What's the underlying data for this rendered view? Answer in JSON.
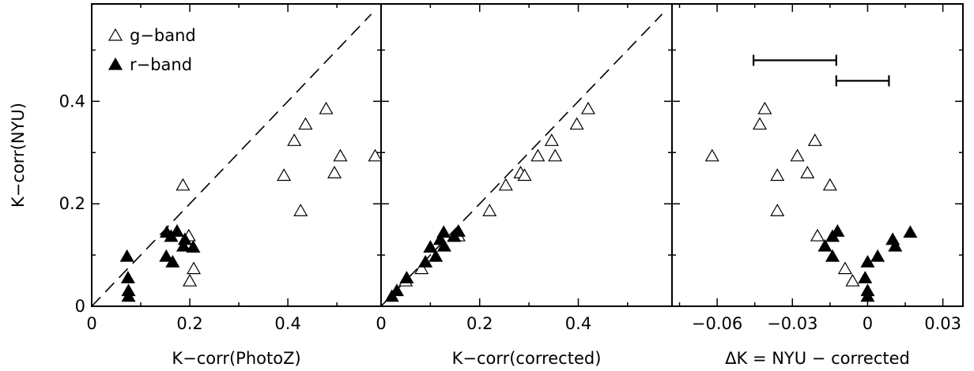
{
  "chart_data": [
    {
      "type": "scatter",
      "panel": "left",
      "xlabel": "K−corr(PhotoZ)",
      "ylabel": "K−corr(NYU)",
      "xlim": [
        0,
        0.59
      ],
      "ylim": [
        0,
        0.59
      ],
      "xticks": [
        0,
        0.2,
        0.4
      ],
      "xtick_labels": [
        "0",
        "0.2",
        "0.4"
      ],
      "yticks": [
        0,
        0.2,
        0.4
      ],
      "ytick_labels": [
        "0",
        "0.2",
        "0.4"
      ],
      "reference_line": "y = x (dashed)",
      "legend": {
        "position": "top-left",
        "entries": [
          "g−band",
          "r−band"
        ]
      },
      "series": [
        {
          "name": "g−band",
          "marker": "open-triangle",
          "points": [
            [
              0.186,
              0.236
            ],
            [
              0.392,
              0.255
            ],
            [
              0.426,
              0.186
            ],
            [
              0.413,
              0.323
            ],
            [
              0.436,
              0.355
            ],
            [
              0.478,
              0.385
            ],
            [
              0.507,
              0.293
            ],
            [
              0.495,
              0.26
            ],
            [
              0.578,
              0.293
            ],
            [
              0.198,
              0.137
            ],
            [
              0.208,
              0.073
            ],
            [
              0.2,
              0.049
            ]
          ]
        },
        {
          "name": "r−band",
          "marker": "filled-triangle",
          "points": [
            [
              0.072,
              0.097
            ],
            [
              0.074,
              0.055
            ],
            [
              0.075,
              0.03
            ],
            [
              0.075,
              0.019
            ],
            [
              0.153,
              0.144
            ],
            [
              0.162,
              0.136
            ],
            [
              0.174,
              0.146
            ],
            [
              0.19,
              0.13
            ],
            [
              0.187,
              0.117
            ],
            [
              0.207,
              0.115
            ],
            [
              0.152,
              0.097
            ],
            [
              0.165,
              0.086
            ]
          ]
        }
      ]
    },
    {
      "type": "scatter",
      "panel": "middle",
      "xlabel": "K−corr(corrected)",
      "xlim": [
        0,
        0.59
      ],
      "ylim": [
        0,
        0.59
      ],
      "xticks": [
        0,
        0.2,
        0.4
      ],
      "xtick_labels": [
        "0",
        "0.2",
        "0.4"
      ],
      "reference_line": "y = x (dashed)",
      "series": [
        {
          "name": "g−band",
          "marker": "open-triangle",
          "points": [
            [
              0.42,
              0.385
            ],
            [
              0.397,
              0.355
            ],
            [
              0.346,
              0.323
            ],
            [
              0.318,
              0.293
            ],
            [
              0.353,
              0.293
            ],
            [
              0.283,
              0.26
            ],
            [
              0.291,
              0.255
            ],
            [
              0.253,
              0.236
            ],
            [
              0.22,
              0.186
            ],
            [
              0.157,
              0.137
            ],
            [
              0.082,
              0.073
            ],
            [
              0.05,
              0.049
            ]
          ]
        },
        {
          "name": "r−band",
          "marker": "filled-triangle",
          "points": [
            [
              0.127,
              0.144
            ],
            [
              0.157,
              0.146
            ],
            [
              0.148,
              0.136
            ],
            [
              0.12,
              0.13
            ],
            [
              0.128,
              0.117
            ],
            [
              0.1,
              0.115
            ],
            [
              0.111,
              0.097
            ],
            [
              0.09,
              0.086
            ],
            [
              0.052,
              0.055
            ],
            [
              0.032,
              0.03
            ],
            [
              0.022,
              0.019
            ]
          ]
        }
      ]
    },
    {
      "type": "scatter",
      "panel": "right",
      "xlabel": "ΔK = NYU − corrected",
      "xlim": [
        -0.078,
        0.038
      ],
      "ylim": [
        0,
        0.59
      ],
      "xticks": [
        -0.06,
        -0.03,
        0,
        0.03
      ],
      "xtick_labels": [
        "−0.06",
        "−0.03",
        "0",
        "0.03"
      ],
      "error_bars": [
        {
          "x_from": -0.0455,
          "x_to": -0.0125,
          "y": 0.48
        },
        {
          "x_from": -0.0125,
          "x_to": 0.0085,
          "y": 0.44
        }
      ],
      "series": [
        {
          "name": "g−band",
          "marker": "open-triangle",
          "points": [
            [
              -0.062,
              0.293
            ],
            [
              -0.041,
              0.385
            ],
            [
              -0.043,
              0.355
            ],
            [
              -0.021,
              0.323
            ],
            [
              -0.028,
              0.293
            ],
            [
              -0.036,
              0.255
            ],
            [
              -0.024,
              0.26
            ],
            [
              -0.015,
              0.236
            ],
            [
              -0.036,
              0.186
            ],
            [
              -0.02,
              0.137
            ],
            [
              -0.009,
              0.073
            ],
            [
              -0.006,
              0.049
            ]
          ]
        },
        {
          "name": "r−band",
          "marker": "filled-triangle",
          "points": [
            [
              -0.012,
              0.146
            ],
            [
              -0.014,
              0.136
            ],
            [
              -0.017,
              0.117
            ],
            [
              -0.014,
              0.097
            ],
            [
              0.01,
              0.13
            ],
            [
              0.011,
              0.117
            ],
            [
              0.017,
              0.144
            ],
            [
              -0.001,
              0.055
            ],
            [
              0.0,
              0.086
            ],
            [
              0.004,
              0.097
            ],
            [
              0.0,
              0.03
            ],
            [
              0.0,
              0.019
            ]
          ]
        }
      ]
    }
  ]
}
